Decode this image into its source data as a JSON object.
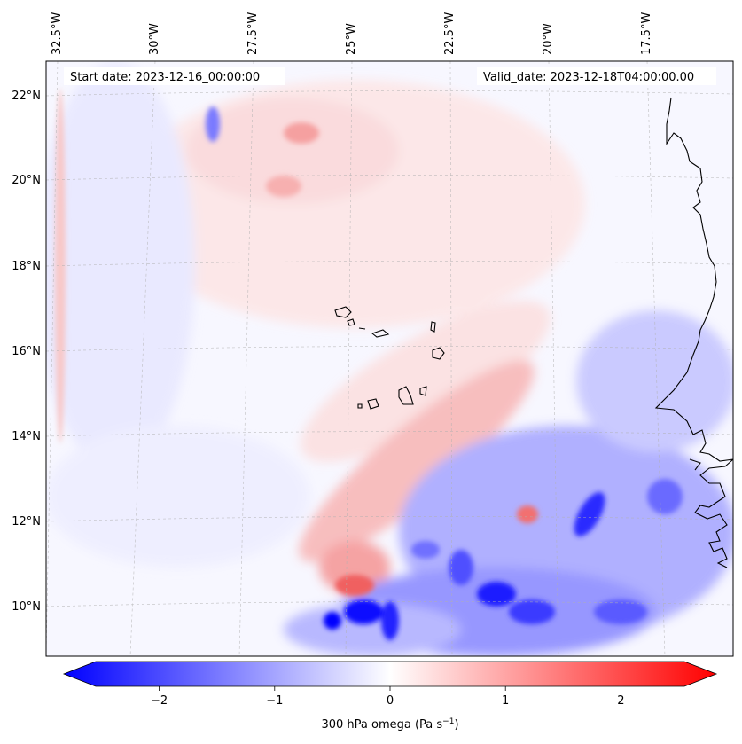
{
  "header": {
    "start_date": "Start date: 2023-12-16_00:00:00",
    "valid_date": "Valid_date: 2023-12-18T04:00:00.00"
  },
  "map": {
    "lon_labels": [
      "32.5°W",
      "30°W",
      "27.5°W",
      "25°W",
      "22.5°W",
      "20°W",
      "17.5°W"
    ],
    "lat_labels": [
      "22°N",
      "20°N",
      "18°N",
      "16°N",
      "14°N",
      "12°N",
      "10°N"
    ],
    "field": "300 hPa omega",
    "colors": {
      "negative_strong": "#0000ff",
      "positive_strong": "#ff0000",
      "neutral": "#ffffff",
      "coastline": "#000000",
      "gridline": "#b0b0b0"
    }
  },
  "colorbar": {
    "ticks": [
      "−2",
      "−1",
      "0",
      "1",
      "2"
    ],
    "tick_values": [
      -2,
      -1,
      0,
      1,
      2
    ],
    "range": [
      -2.6,
      2.6
    ],
    "label_main": "300 hPa omega (Pa s",
    "label_sup": "−1",
    "label_end": ")"
  }
}
